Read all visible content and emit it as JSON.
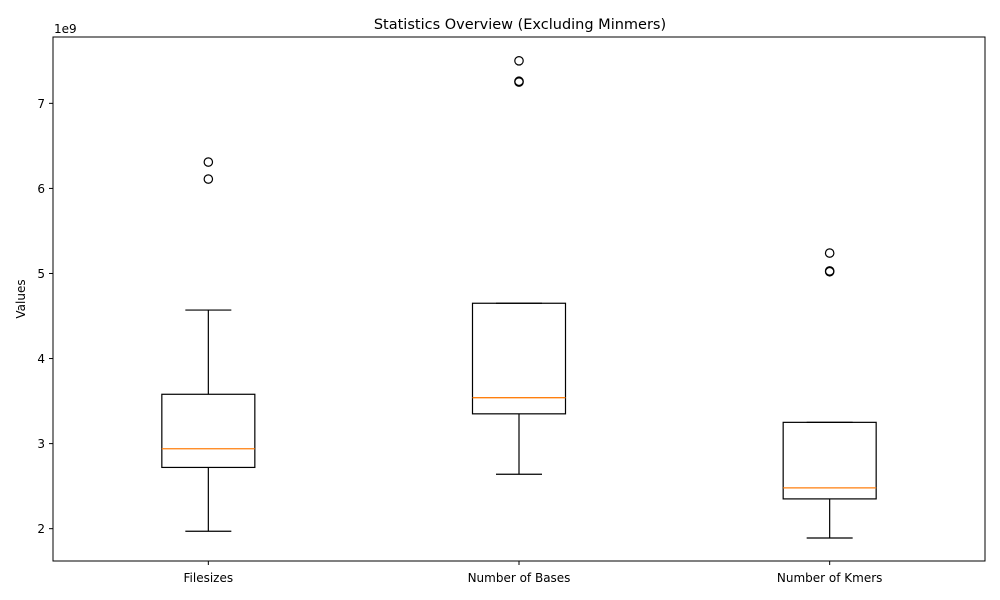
{
  "chart_data": {
    "type": "box",
    "title": "Statistics Overview (Excluding Minmers)",
    "xlabel": "",
    "ylabel": "Values",
    "y_offset_label": "1e9",
    "y_scale": 1000000000,
    "ylim": [
      1.62,
      7.78
    ],
    "yticks": [
      2,
      3,
      4,
      5,
      6,
      7
    ],
    "ytick_labels": [
      "2",
      "3",
      "4",
      "5",
      "6",
      "7"
    ],
    "grid": false,
    "categories": [
      "Filesizes",
      "Number of Bases",
      "Number of Kmers"
    ],
    "boxes": [
      {
        "whisker_low": 1.97,
        "q1": 2.72,
        "median": 2.94,
        "q3": 3.58,
        "whisker_high": 4.57,
        "outliers": [
          6.11,
          6.31
        ]
      },
      {
        "whisker_low": 2.64,
        "q1": 3.35,
        "median": 3.54,
        "q3": 4.65,
        "whisker_high": 4.65,
        "outliers": [
          7.25,
          7.26,
          7.5
        ]
      },
      {
        "whisker_low": 1.89,
        "q1": 2.35,
        "median": 2.48,
        "q3": 3.25,
        "whisker_high": 3.25,
        "outliers": [
          5.02,
          5.03,
          5.24
        ]
      }
    ],
    "colors": {
      "box": "#000000",
      "median": "#ff7f0e",
      "outlier": "#000000"
    }
  }
}
